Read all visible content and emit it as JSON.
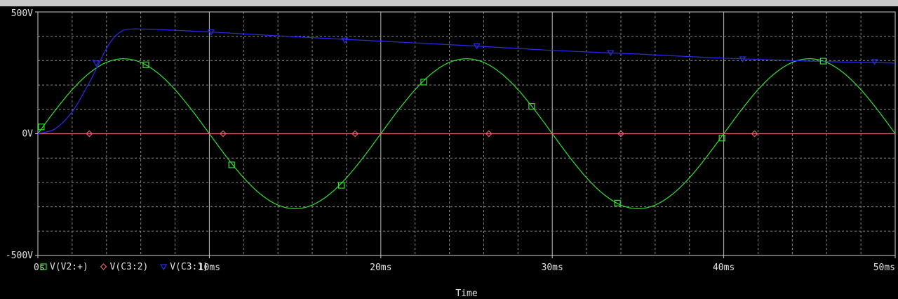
{
  "chart_data": {
    "type": "line",
    "xlabel": "Time",
    "ylabel": "",
    "xlim": [
      0,
      50
    ],
    "ylim": [
      -500,
      500
    ],
    "x_ticks": [
      {
        "value": 0,
        "label": "0s"
      },
      {
        "value": 10,
        "label": "10ms"
      },
      {
        "value": 20,
        "label": "20ms"
      },
      {
        "value": 30,
        "label": "30ms"
      },
      {
        "value": 40,
        "label": "40ms"
      },
      {
        "value": 50,
        "label": "50ms"
      }
    ],
    "y_ticks": [
      {
        "value": 500,
        "label": "500V"
      },
      {
        "value": 0,
        "label": "0V"
      },
      {
        "value": -500,
        "label": "-500V"
      }
    ],
    "grid": true,
    "legend_position": "bottom-left",
    "series": [
      {
        "name": "V(V2:+)",
        "color": "#33dd33",
        "marker": "square",
        "x": [
          0,
          1,
          2,
          3,
          4,
          5,
          6,
          7,
          8,
          9,
          10,
          11,
          12,
          13,
          14,
          15,
          16,
          17,
          18,
          19,
          20,
          21,
          22,
          23,
          24,
          25,
          26,
          27,
          28,
          29,
          30,
          31,
          32,
          33,
          34,
          35,
          36,
          37,
          38,
          39,
          40,
          41,
          42,
          43,
          44,
          45,
          46,
          47,
          48,
          49,
          50
        ],
        "values": [
          0,
          95,
          181,
          249,
          293,
          308,
          293,
          249,
          181,
          95,
          0,
          -95,
          -181,
          -249,
          -293,
          -308,
          -293,
          -249,
          -181,
          -95,
          0,
          95,
          181,
          249,
          293,
          308,
          293,
          249,
          181,
          95,
          0,
          -95,
          -181,
          -249,
          -293,
          -308,
          -293,
          -249,
          -181,
          -95,
          0,
          95,
          181,
          249,
          293,
          308,
          293,
          249,
          181,
          95,
          0
        ],
        "marker_x": [
          0.2,
          6.3,
          11.3,
          17.7,
          22.5,
          28.8,
          33.8,
          39.9,
          45.8
        ],
        "marker_values": [
          28,
          283,
          -128,
          -212,
          212,
          112,
          -285,
          -18,
          298
        ]
      },
      {
        "name": "V(C3:2)",
        "color": "#dd6666",
        "marker": "diamond",
        "x": [
          0,
          50
        ],
        "values": [
          0,
          0
        ],
        "marker_x": [
          3,
          10.8,
          18.5,
          26.3,
          34,
          41.8
        ],
        "marker_values": [
          0,
          0,
          0,
          0,
          0,
          0
        ]
      },
      {
        "name": "V(C3:1)",
        "color": "#2a2aee",
        "marker": "triangle-down",
        "x": [
          0,
          1,
          2,
          3,
          3.5,
          4,
          4.5,
          5,
          5.5,
          6,
          7,
          10,
          15,
          20,
          25,
          30,
          35,
          40,
          45,
          50
        ],
        "values": [
          0,
          20,
          90,
          210,
          280,
          350,
          400,
          425,
          430,
          430,
          428,
          418,
          398,
          380,
          362,
          342,
          327,
          310,
          298,
          290
        ],
        "marker_x": [
          3.4,
          10.1,
          17.9,
          25.6,
          33.4,
          41.1,
          48.8
        ],
        "marker_values": [
          290,
          418,
          384,
          361,
          333,
          307,
          296
        ]
      }
    ]
  }
}
